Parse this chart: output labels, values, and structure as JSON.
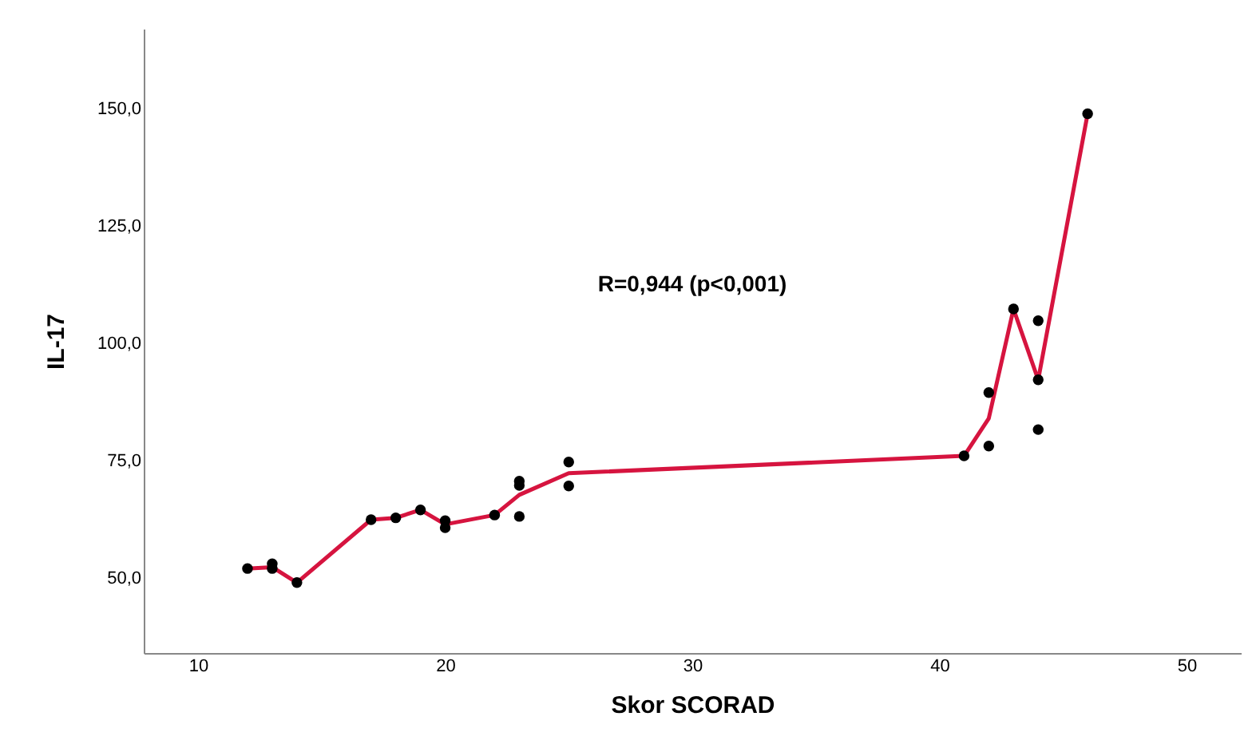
{
  "chart_data": {
    "type": "scatter",
    "xlabel": "Skor SCORAD",
    "ylabel": "IL-17",
    "xlim": [
      7.8,
      52.2
    ],
    "xticks": [
      10,
      20,
      30,
      40,
      50
    ],
    "ylim": [
      34,
      167
    ],
    "yticks": [
      {
        "value": 50,
        "label": "50,0"
      },
      {
        "value": 75,
        "label": "75,0"
      },
      {
        "value": 100,
        "label": "100,0"
      },
      {
        "value": 125,
        "label": "125,0"
      },
      {
        "value": 150,
        "label": "150,0"
      }
    ],
    "grid": false,
    "annotations": [
      "R=0,944 (p<0,001)"
    ],
    "series": [
      {
        "type": "scatter",
        "color": "#000000",
        "marker": "circle",
        "x": [
          12,
          13,
          13,
          14,
          17,
          18,
          19,
          20,
          20,
          22,
          23,
          23,
          23,
          25,
          25,
          41,
          42,
          42,
          43,
          44,
          44,
          44,
          46
        ],
        "values": [
          52.0,
          53.0,
          52.0,
          49.0,
          62.4,
          62.8,
          64.5,
          62.2,
          60.7,
          63.4,
          70.6,
          69.7,
          63.1,
          74.7,
          69.6,
          76.0,
          89.5,
          78.1,
          107.3,
          104.8,
          92.2,
          81.6,
          148.9
        ]
      },
      {
        "type": "line",
        "color": "#d6143f",
        "marker": "none",
        "line_style": "solid",
        "x": [
          12,
          13,
          14,
          17,
          18,
          19,
          20,
          22,
          23,
          25,
          41,
          42,
          43,
          44,
          46
        ],
        "values": [
          52.0,
          52.3,
          49.0,
          62.4,
          62.8,
          64.5,
          61.4,
          63.4,
          67.7,
          72.3,
          76.0,
          84.0,
          107.3,
          92.2,
          148.9
        ]
      }
    ]
  }
}
